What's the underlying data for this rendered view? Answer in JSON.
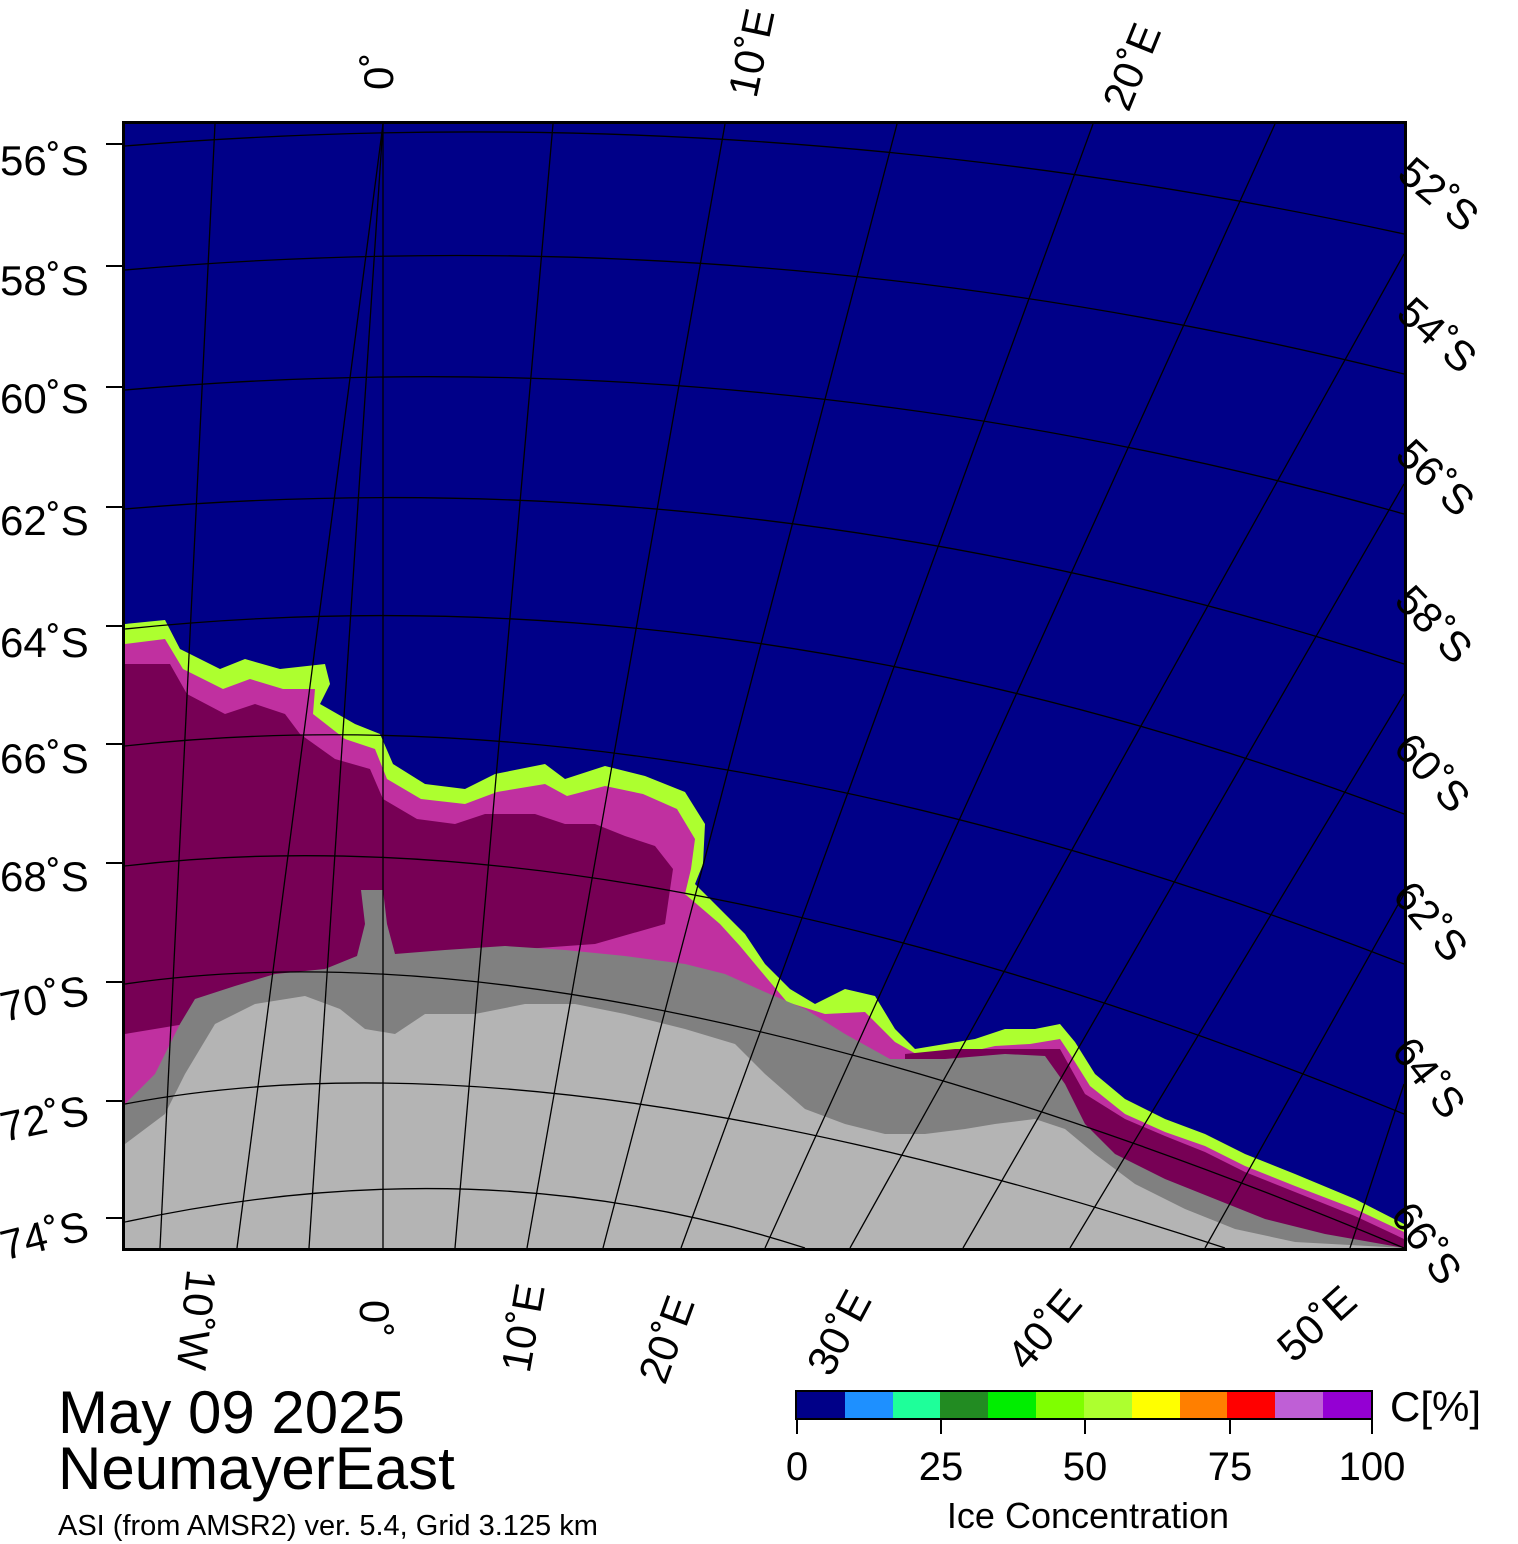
{
  "map": {
    "title_date": "May 09 2025",
    "title_region": "NeumayerEast",
    "credit": "ASI (from AMSR2) ver. 5.4,  Grid 3.125 km",
    "colors": {
      "ocean": "#000088",
      "ice_shelf": "#808080",
      "land": "#b4b4b4",
      "ice_high": "#770055"
    },
    "top_lon_labels": [
      "0˚",
      "10˚E",
      "20˚E"
    ],
    "bottom_lon_labels": [
      "10˚W",
      "0˚",
      "10˚E",
      "20˚E",
      "30˚E",
      "40˚E",
      "50˚E"
    ],
    "left_lat_labels": [
      "56˚S",
      "58˚S",
      "60˚S",
      "62˚S",
      "64˚S",
      "66˚S",
      "68˚S",
      "70˚S",
      "72˚S",
      "74˚S"
    ],
    "right_lat_labels": [
      "52˚S",
      "54˚S",
      "56˚S",
      "58˚S",
      "60˚S",
      "62˚S",
      "64˚S",
      "66˚S"
    ]
  },
  "colorbar": {
    "unit": "C[%]",
    "label": "Ice Concentration",
    "ticks": [
      "0",
      "25",
      "50",
      "75",
      "100"
    ],
    "tick_values": [
      0,
      25,
      50,
      75,
      100
    ],
    "colors": [
      "#000088",
      "#1e90ff",
      "#1eff9a",
      "#228b22",
      "#00ee00",
      "#7fff00",
      "#adff2f",
      "#ffff00",
      "#ff7f00",
      "#ff0000",
      "#bf5fd6",
      "#9400d3"
    ]
  }
}
